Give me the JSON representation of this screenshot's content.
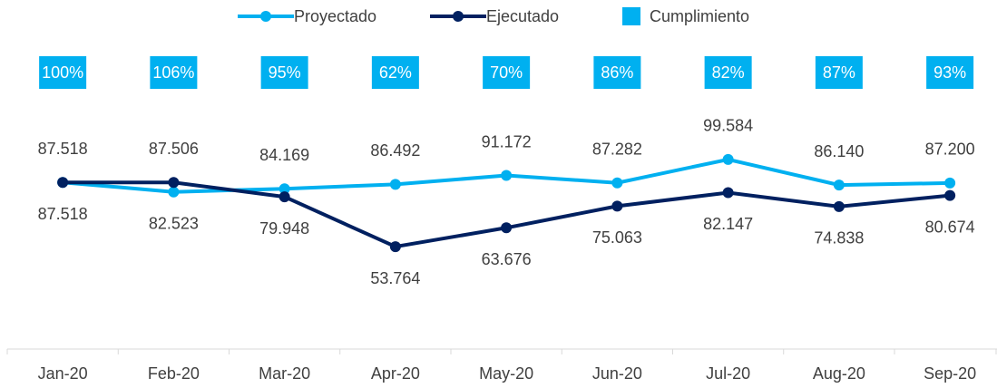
{
  "chart_data": {
    "type": "line",
    "categories": [
      "Jan-20",
      "Feb-20",
      "Mar-20",
      "Apr-20",
      "May-20",
      "Jun-20",
      "Jul-20",
      "Aug-20",
      "Sep-20"
    ],
    "series": [
      {
        "name": "Proyectado",
        "color": "#00b0f0",
        "values": [
          87.518,
          82.523,
          84.169,
          86.492,
          91.172,
          87.282,
          99.584,
          86.14,
          87.2
        ],
        "value_labels": [
          "87.518",
          "82.523",
          "84.169",
          "86.492",
          "91.172",
          "87.282",
          "99.584",
          "86.140",
          "87.200"
        ]
      },
      {
        "name": "Ejecutado",
        "color": "#002060",
        "values": [
          87.518,
          87.506,
          79.948,
          53.764,
          63.676,
          75.063,
          82.147,
          74.838,
          80.674
        ],
        "value_labels": [
          "87.518",
          "87.506",
          "79.948",
          "53.764",
          "63.676",
          "75.063",
          "82.147",
          "74.838",
          "80.674"
        ]
      }
    ],
    "cumplimiento": {
      "name": "Cumplimiento",
      "color": "#00b0f0",
      "values": [
        100,
        106,
        95,
        62,
        70,
        86,
        82,
        87,
        93
      ],
      "value_labels": [
        "100%",
        "106%",
        "95%",
        "62%",
        "70%",
        "86%",
        "82%",
        "87%",
        "93%"
      ]
    },
    "ylim": [
      0,
      150
    ]
  }
}
